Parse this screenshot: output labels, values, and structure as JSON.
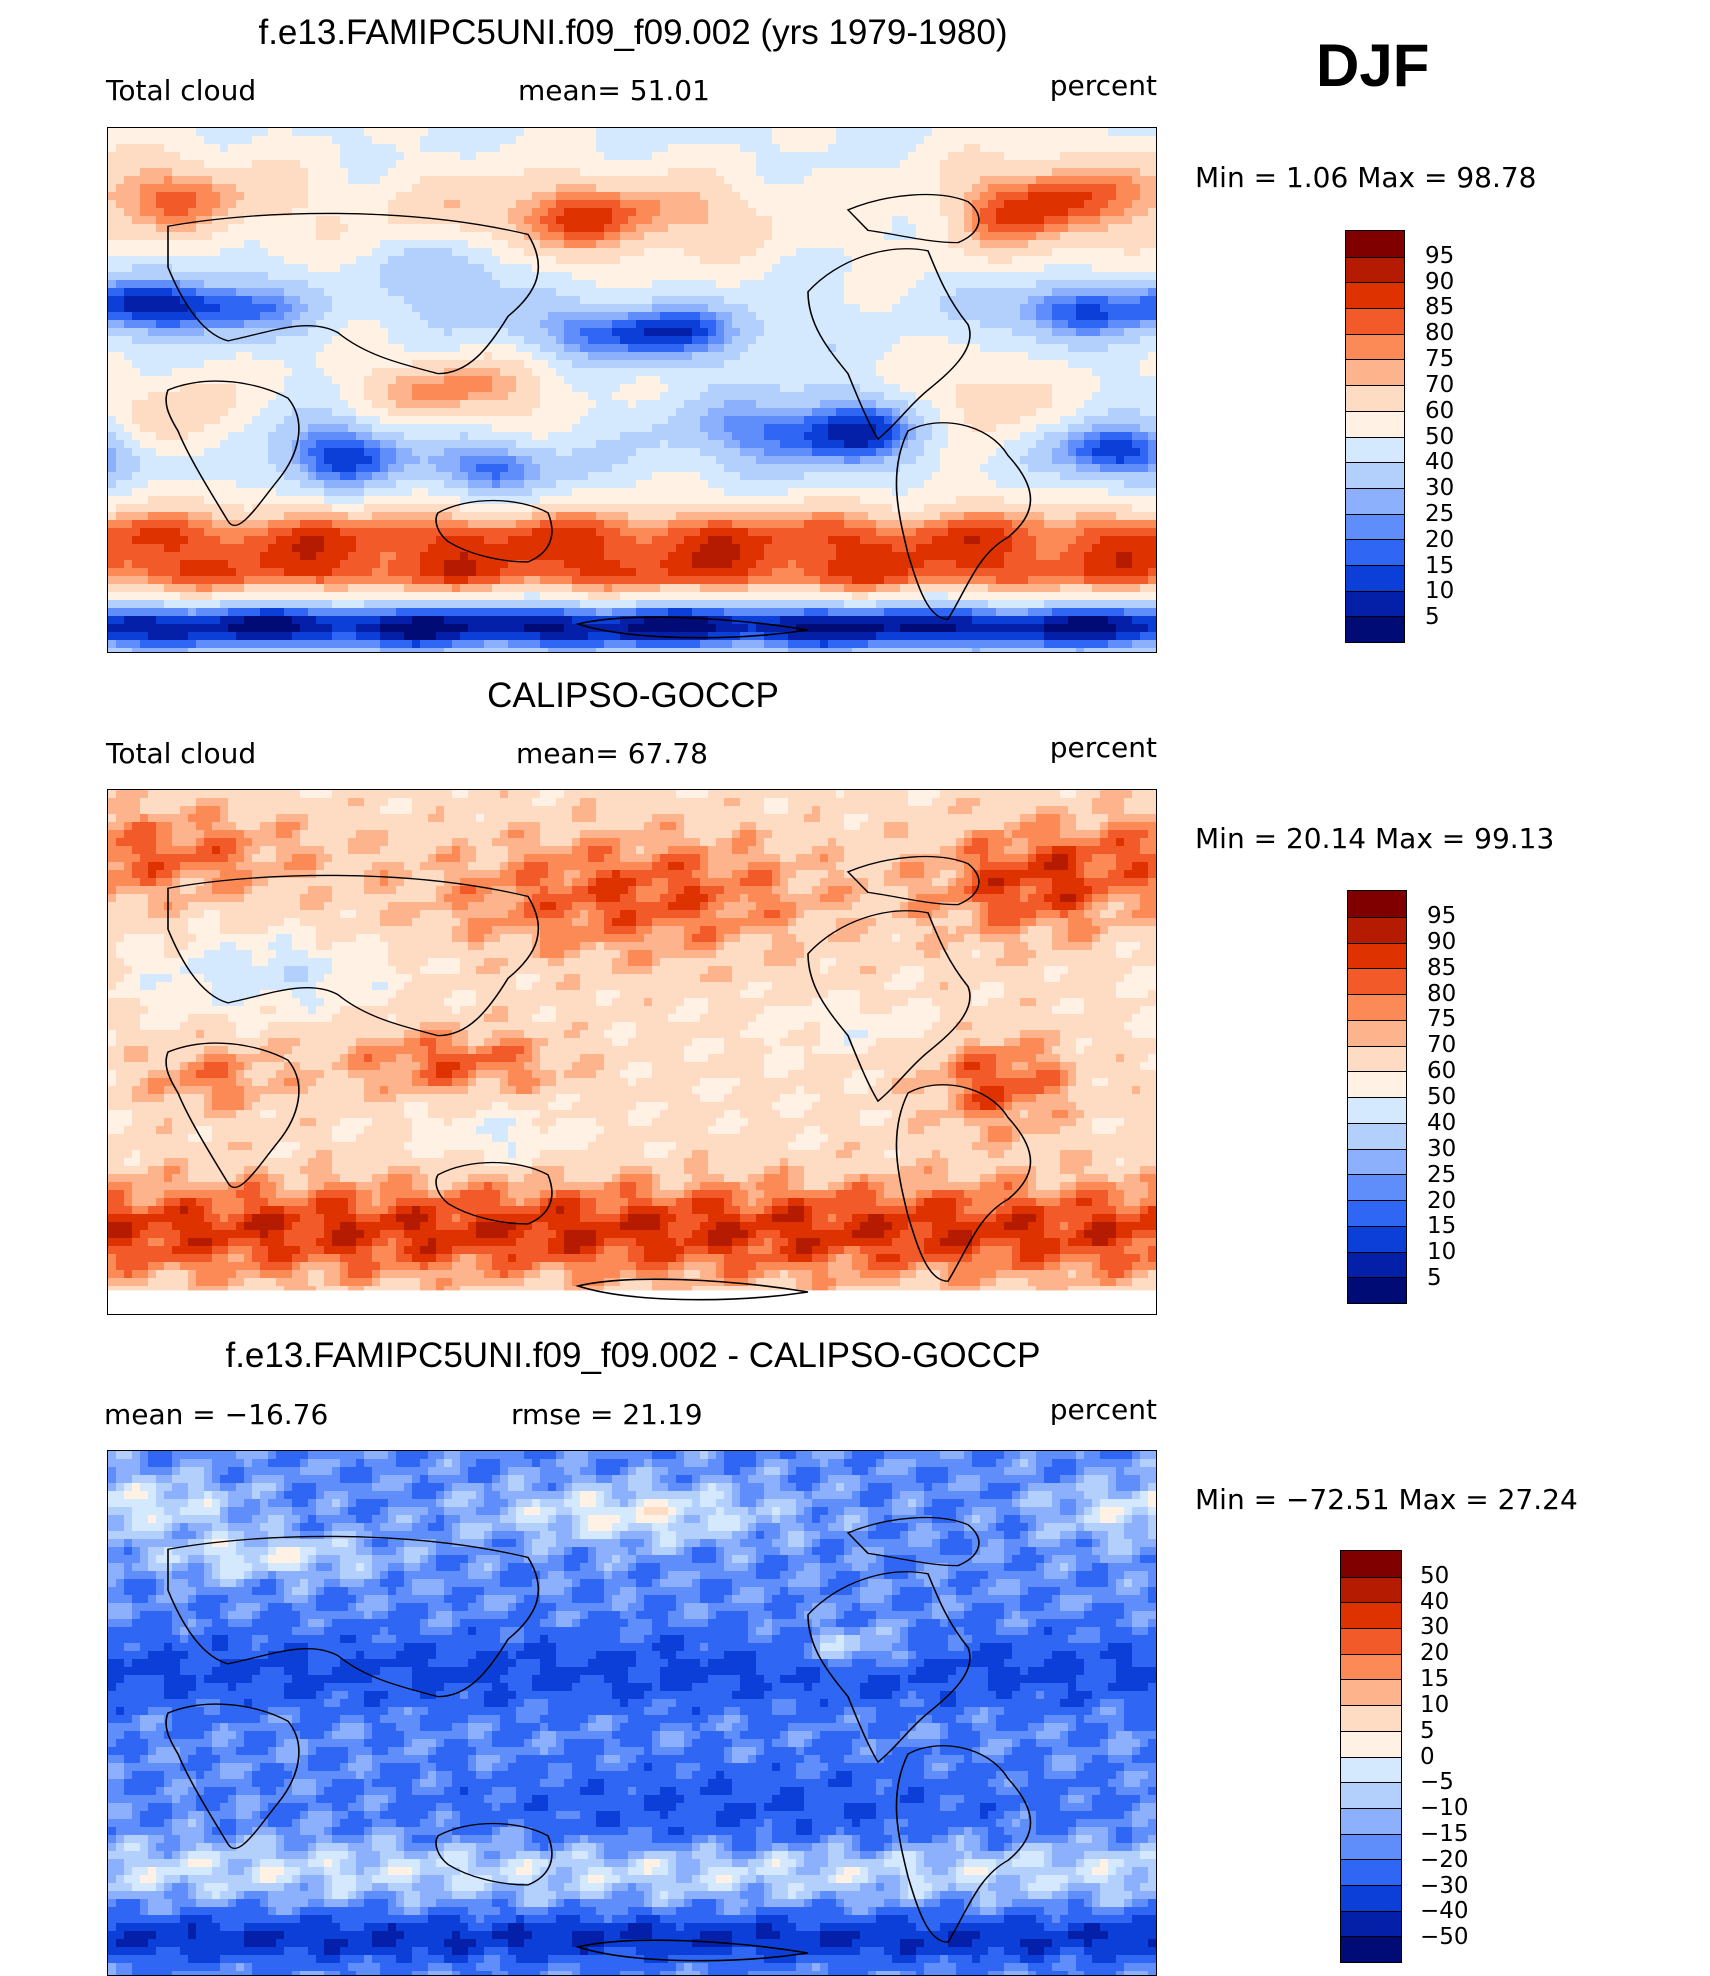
{
  "season": "DJF",
  "panels": [
    {
      "title": "f.e13.FAMIPC5UNI.f09_f09.002 (yrs 1979-1980)",
      "left_label": "Total cloud",
      "center_label": "mean=   51.01",
      "right_label": "percent",
      "minmax": "Min  =     1.06  Max  =    98.78",
      "colorbar_labels": [
        "95",
        "90",
        "85",
        "80",
        "75",
        "70",
        "60",
        "50",
        "40",
        "30",
        "25",
        "20",
        "15",
        "10",
        "5"
      ],
      "colorbar_colors": [
        "#800000",
        "#b51b00",
        "#de3300",
        "#f35a2a",
        "#fb8a56",
        "#fdb38c",
        "#fedbc3",
        "#fff1e3",
        "#d4e8fe",
        "#b3d0fd",
        "#8db0fc",
        "#5f8df9",
        "#2f66f3",
        "#0b3fd8",
        "#0520a8",
        "#000b76"
      ]
    },
    {
      "title": "CALIPSO-GOCCP",
      "left_label": "Total cloud",
      "center_label": "mean=   67.78",
      "right_label": "percent",
      "minmax": "Min  =   20.14  Max  =    99.13",
      "colorbar_labels": [
        "95",
        "90",
        "85",
        "80",
        "75",
        "70",
        "60",
        "50",
        "40",
        "30",
        "25",
        "20",
        "15",
        "10",
        "5"
      ],
      "colorbar_colors": [
        "#800000",
        "#b51b00",
        "#de3300",
        "#f35a2a",
        "#fb8a56",
        "#fdb38c",
        "#fedbc3",
        "#fff1e3",
        "#d4e8fe",
        "#b3d0fd",
        "#8db0fc",
        "#5f8df9",
        "#2f66f3",
        "#0b3fd8",
        "#0520a8",
        "#000b76"
      ]
    },
    {
      "title": "f.e13.FAMIPC5UNI.f09_f09.002 - CALIPSO-GOCCP",
      "left_label": "mean  =  −16.76",
      "center_label": "rmse  =    21.19",
      "right_label": "percent",
      "minmax": "Min  =  −72.51  Max  =    27.24",
      "colorbar_labels": [
        "50",
        "40",
        "30",
        "20",
        "15",
        "10",
        "5",
        "0",
        "−5",
        "−10",
        "−15",
        "−20",
        "−30",
        "−40",
        "−50"
      ],
      "colorbar_colors": [
        "#800000",
        "#b51b00",
        "#de3300",
        "#f35a2a",
        "#fb8a56",
        "#fdb38c",
        "#fedbc3",
        "#fff1e3",
        "#d4e8fe",
        "#b3d0fd",
        "#8db0fc",
        "#5f8df9",
        "#2f66f3",
        "#0b3fd8",
        "#0520a8",
        "#000b76"
      ]
    }
  ],
  "chart_data": [
    {
      "type": "heatmap",
      "title": "f.e13.FAMIPC5UNI.f09_f09.002 (yrs 1979-1980)",
      "variable": "Total cloud",
      "units": "percent",
      "mean": 51.01,
      "min": 1.06,
      "max": 98.78,
      "contour_levels": [
        5,
        10,
        15,
        20,
        25,
        30,
        40,
        50,
        60,
        70,
        75,
        80,
        85,
        90,
        95
      ],
      "projection": "cylindrical equidistant, Pacific-centred"
    },
    {
      "type": "heatmap",
      "title": "CALIPSO-GOCCP",
      "variable": "Total cloud",
      "units": "percent",
      "mean": 67.78,
      "min": 20.14,
      "max": 99.13,
      "contour_levels": [
        5,
        10,
        15,
        20,
        25,
        30,
        40,
        50,
        60,
        70,
        75,
        80,
        85,
        90,
        95
      ],
      "projection": "cylindrical equidistant, Pacific-centred"
    },
    {
      "type": "heatmap",
      "title": "f.e13.FAMIPC5UNI.f09_f09.002 - CALIPSO-GOCCP",
      "units": "percent",
      "mean": -16.76,
      "rmse": 21.19,
      "min": -72.51,
      "max": 27.24,
      "contour_levels": [
        -50,
        -40,
        -30,
        -20,
        -15,
        -10,
        -5,
        0,
        5,
        10,
        15,
        20,
        30,
        40,
        50
      ],
      "projection": "cylindrical equidistant, Pacific-centred"
    }
  ]
}
